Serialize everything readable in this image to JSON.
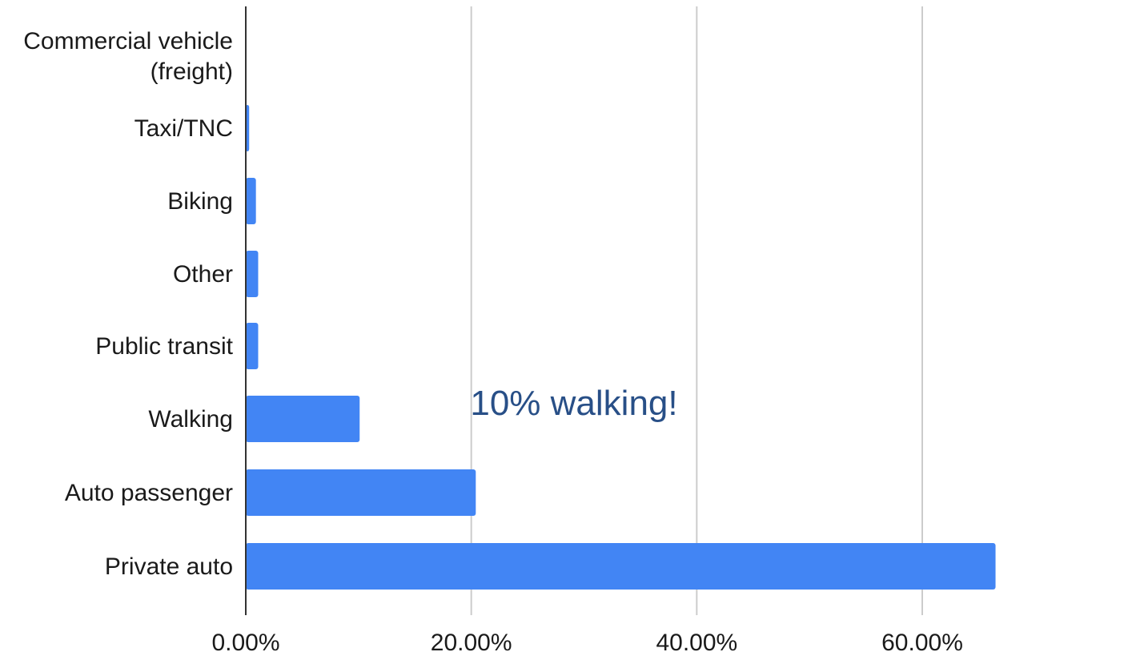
{
  "chart_data": {
    "type": "bar",
    "orientation": "horizontal",
    "categories": [
      "Commercial vehicle (freight)",
      "Taxi/TNC",
      "Biking",
      "Other",
      "Public transit",
      "Walking",
      "Auto passenger",
      "Private auto"
    ],
    "category_lines": [
      [
        "Commercial vehicle",
        "(freight)"
      ],
      [
        "Taxi/TNC"
      ],
      [
        "Biking"
      ],
      [
        "Other"
      ],
      [
        "Public transit"
      ],
      [
        "Walking"
      ],
      [
        "Auto passenger"
      ],
      [
        "Private auto"
      ]
    ],
    "values": [
      0.0,
      0.3,
      0.9,
      1.1,
      1.1,
      10.1,
      20.4,
      66.5
    ],
    "value_unit": "%",
    "xlim": [
      0,
      60
    ],
    "xticks": [
      0,
      20,
      40,
      60
    ],
    "xtick_labels": [
      "0.00%",
      "20.00%",
      "40.00%",
      "60.00%"
    ],
    "grid": "vertical",
    "legend": "none",
    "title": "",
    "xlabel": "",
    "ylabel": "",
    "bar_color": "#4285f4",
    "annotation": {
      "text": "10% walking!",
      "color": "#284f87"
    }
  }
}
